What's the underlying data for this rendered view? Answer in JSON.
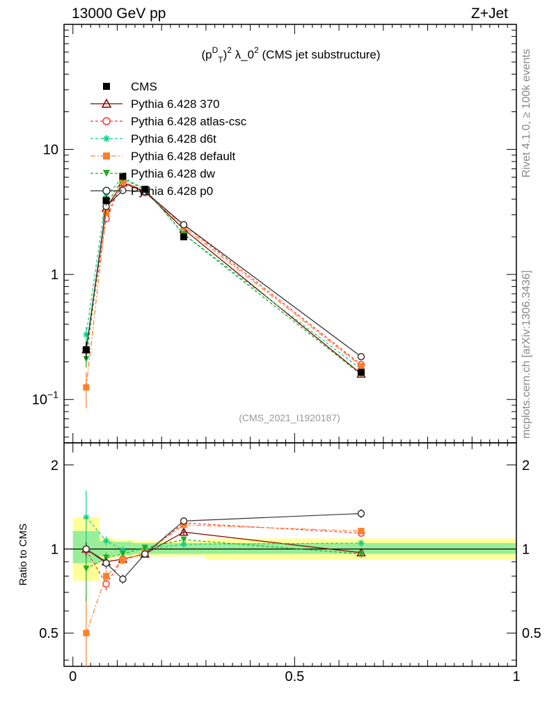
{
  "header": {
    "left_title": "13000 GeV pp",
    "right_title": "Z+Jet"
  },
  "side_labels": {
    "rivet": "Rivet 4.1.0, ≥ 100k events",
    "source": "mcplots.cern.ch [arXiv:1306.3436]"
  },
  "colors": {
    "CMS": "#000000",
    "Pythia 6.428 370": "#800000",
    "Pythia 6.428 atlas-csc": "#ff3333",
    "Pythia 6.428 d6t": "#11cc88",
    "Pythia 6.428 default": "#ff7f27",
    "Pythia 6.428 dw": "#22aa22",
    "Pythia 6.428 p0": "#333333",
    "band_inner": "#99ee99",
    "band_outer": "#ffff99"
  },
  "chart_data": [
    {
      "type": "line",
      "title": "(p_T^D)^2 λ_0^2 (CMS jet substructure)",
      "title_main": "(p",
      "title_sup1": "D",
      "title_sub1": "T",
      "title_mid": ")",
      "title_sup2": "2",
      "title_rest": " λ_0",
      "title_sup3": "2",
      "title_tail": " (CMS jet substructure)",
      "analysis_label": "(CMS_2021_I1920187)",
      "yscale": "log",
      "ylim": [
        0.045,
        100
      ],
      "xlim": [
        -0.02,
        1.0
      ],
      "yticks": [
        {
          "value": 0.1,
          "label": "10",
          "sup": "−1"
        },
        {
          "value": 1,
          "label": "1",
          "sup": ""
        },
        {
          "value": 10,
          "label": "10",
          "sup": ""
        }
      ],
      "x": [
        0.03,
        0.075,
        0.1125,
        0.1625,
        0.25,
        0.65
      ],
      "series": [
        {
          "name": "CMS",
          "values": [
            0.25,
            3.9,
            6.1,
            4.8,
            2.0,
            0.165
          ],
          "marker": "square-filled",
          "dash": "none",
          "errors": [
            0.04,
            0.35,
            0.35,
            0.25,
            0.1,
            0.01
          ]
        },
        {
          "name": "Pythia 6.428 370",
          "values": [
            0.25,
            3.4,
            5.4,
            4.6,
            2.3,
            0.16
          ],
          "marker": "triangle-open",
          "dash": "solid",
          "errors": [
            0.03,
            0.2,
            0.2,
            0.15,
            0.06,
            0.007
          ]
        },
        {
          "name": "Pythia 6.428 atlas-csc",
          "values": [
            0.25,
            2.8,
            5.6,
            4.5,
            2.5,
            0.19
          ],
          "marker": "circle-open",
          "dash": "4,3",
          "errors": [
            0.03,
            0.2,
            0.2,
            0.15,
            0.06,
            0.007
          ]
        },
        {
          "name": "Pythia 6.428 d6t",
          "values": [
            0.33,
            4.2,
            6.0,
            4.8,
            2.1,
            0.175
          ],
          "marker": "star",
          "dash": "4,3",
          "errors": [
            0.05,
            0.25,
            0.2,
            0.15,
            0.06,
            0.007
          ]
        },
        {
          "name": "Pythia 6.428 default",
          "values": [
            0.125,
            3.1,
            5.5,
            4.7,
            2.4,
            0.185
          ],
          "marker": "square-filled",
          "dash": "7,3,2,3",
          "errors": [
            0.04,
            0.2,
            0.2,
            0.15,
            0.06,
            0.007
          ]
        },
        {
          "name": "Pythia 6.428 dw",
          "values": [
            0.21,
            3.6,
            5.8,
            4.8,
            2.1,
            0.158
          ],
          "marker": "triangle-down-filled",
          "dash": "4,3",
          "errors": [
            0.03,
            0.2,
            0.2,
            0.15,
            0.06,
            0.007
          ]
        },
        {
          "name": "Pythia 6.428 p0",
          "values": [
            0.25,
            3.5,
            4.7,
            4.6,
            2.5,
            0.22
          ],
          "marker": "circle-open",
          "dash": "solid",
          "errors": [
            0.03,
            0.2,
            0.2,
            0.15,
            0.06,
            0.008
          ]
        }
      ]
    },
    {
      "type": "line",
      "title": "Ratio",
      "ylabel": "Ratio to CMS",
      "yscale": "log",
      "ylim": [
        0.38,
        2.4
      ],
      "xlim": [
        -0.02,
        1.0
      ],
      "yticks": [
        {
          "value": 0.5,
          "label": "0.5"
        },
        {
          "value": 1,
          "label": "1"
        },
        {
          "value": 2,
          "label": "2"
        }
      ],
      "xticks": [
        {
          "value": 0,
          "label": "0"
        },
        {
          "value": 0.5,
          "label": "0.5"
        },
        {
          "value": 1,
          "label": "1"
        }
      ],
      "x": [
        0.03,
        0.075,
        0.1125,
        0.1625,
        0.25,
        0.65
      ],
      "bands": [
        {
          "x0": 0.0,
          "x1": 0.06,
          "inner": [
            0.89,
            1.16
          ],
          "outer": [
            0.77,
            1.3
          ]
        },
        {
          "x0": 0.06,
          "x1": 0.08,
          "inner": [
            0.94,
            1.07
          ],
          "outer": [
            0.91,
            1.1
          ]
        },
        {
          "x0": 0.08,
          "x1": 0.09,
          "inner": [
            0.94,
            1.07
          ],
          "outer": [
            0.91,
            1.1
          ]
        },
        {
          "x0": 0.09,
          "x1": 0.135,
          "inner": [
            0.95,
            1.06
          ],
          "outer": [
            0.93,
            1.08
          ]
        },
        {
          "x0": 0.135,
          "x1": 0.19,
          "inner": [
            0.96,
            1.05
          ],
          "outer": [
            0.94,
            1.07
          ]
        },
        {
          "x0": 0.19,
          "x1": 0.3,
          "inner": [
            0.96,
            1.05
          ],
          "outer": [
            0.94,
            1.07
          ]
        },
        {
          "x0": 0.3,
          "x1": 1.0,
          "inner": [
            0.96,
            1.05
          ],
          "outer": [
            0.92,
            1.09
          ]
        }
      ],
      "series": [
        {
          "name": "CMS",
          "values": [
            1.0,
            1.0,
            1.0,
            1.0,
            1.0,
            1.0
          ],
          "marker": "none",
          "errors": [
            0,
            0,
            0,
            0,
            0,
            0
          ]
        },
        {
          "name": "Pythia 6.428 370",
          "values": [
            1.0,
            0.9,
            0.92,
            0.96,
            1.15,
            0.97
          ],
          "marker": "triangle-open",
          "errors": [
            0.05,
            0.03,
            0.03,
            0.02,
            0.03,
            0.03
          ]
        },
        {
          "name": "Pythia 6.428 atlas-csc",
          "values": [
            0.99,
            0.75,
            0.92,
            0.96,
            1.24,
            1.14
          ],
          "marker": "circle-open",
          "errors": [
            0.06,
            0.04,
            0.03,
            0.02,
            0.03,
            0.03
          ]
        },
        {
          "name": "Pythia 6.428 d6t",
          "values": [
            1.3,
            1.07,
            0.99,
            1.0,
            1.04,
            1.05
          ],
          "marker": "star",
          "errors": [
            0.32,
            0.04,
            0.03,
            0.02,
            0.03,
            0.03
          ]
        },
        {
          "name": "Pythia 6.428 default",
          "values": [
            0.5,
            0.8,
            0.91,
            0.97,
            1.22,
            1.16
          ],
          "marker": "square-filled",
          "errors": [
            0.18,
            0.04,
            0.03,
            0.02,
            0.03,
            0.03
          ]
        },
        {
          "name": "Pythia 6.428 dw",
          "values": [
            0.85,
            0.93,
            0.96,
            1.01,
            1.08,
            0.96
          ],
          "marker": "triangle-down-filled",
          "errors": [
            0.2,
            0.04,
            0.03,
            0.02,
            0.03,
            0.03
          ]
        },
        {
          "name": "Pythia 6.428 p0",
          "values": [
            1.0,
            0.89,
            0.78,
            0.96,
            1.26,
            1.34
          ],
          "marker": "circle-open",
          "errors": [
            0.06,
            0.04,
            0.03,
            0.03,
            0.04,
            0.05
          ]
        }
      ]
    }
  ]
}
